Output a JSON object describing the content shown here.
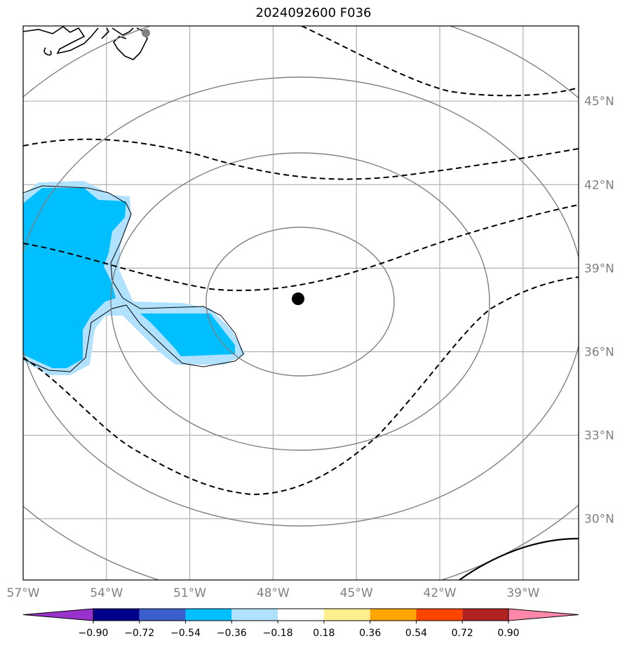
{
  "title": "2024092600 F036",
  "map": {
    "lon_range": [
      -57,
      -37
    ],
    "lat_range": [
      27.8,
      47.7
    ],
    "lon_ticks": [
      {
        "value": -57,
        "label": "57°W"
      },
      {
        "value": -54,
        "label": "54°W"
      },
      {
        "value": -51,
        "label": "51°W"
      },
      {
        "value": -48,
        "label": "48°W"
      },
      {
        "value": -45,
        "label": "45°W"
      },
      {
        "value": -42,
        "label": "42°W"
      },
      {
        "value": -39,
        "label": "39°W"
      }
    ],
    "lat_ticks": [
      {
        "value": 45,
        "label": "45°N"
      },
      {
        "value": 42,
        "label": "42°N"
      },
      {
        "value": 39,
        "label": "39°N"
      },
      {
        "value": 36,
        "label": "36°N"
      },
      {
        "value": 33,
        "label": "33°N"
      },
      {
        "value": 30,
        "label": "30°N"
      }
    ],
    "storm_center": {
      "lon": -47.1,
      "lat": 37.9
    },
    "gridline_color": "#b0b0b0",
    "range_ring_color": "#808080"
  },
  "colorbar": {
    "levels": [
      "−0.90",
      "−0.72",
      "−0.54",
      "−0.36",
      "−0.18",
      "0.18",
      "0.36",
      "0.54",
      "0.72",
      "0.90"
    ],
    "colors": [
      "#9932cc",
      "#00008b",
      "#3a5fcd",
      "#00bfff",
      "#b0e2ff",
      "#ffffff",
      "#fff08f",
      "#ffa500",
      "#ff4500",
      "#b22222",
      "#ff88aa"
    ]
  }
}
